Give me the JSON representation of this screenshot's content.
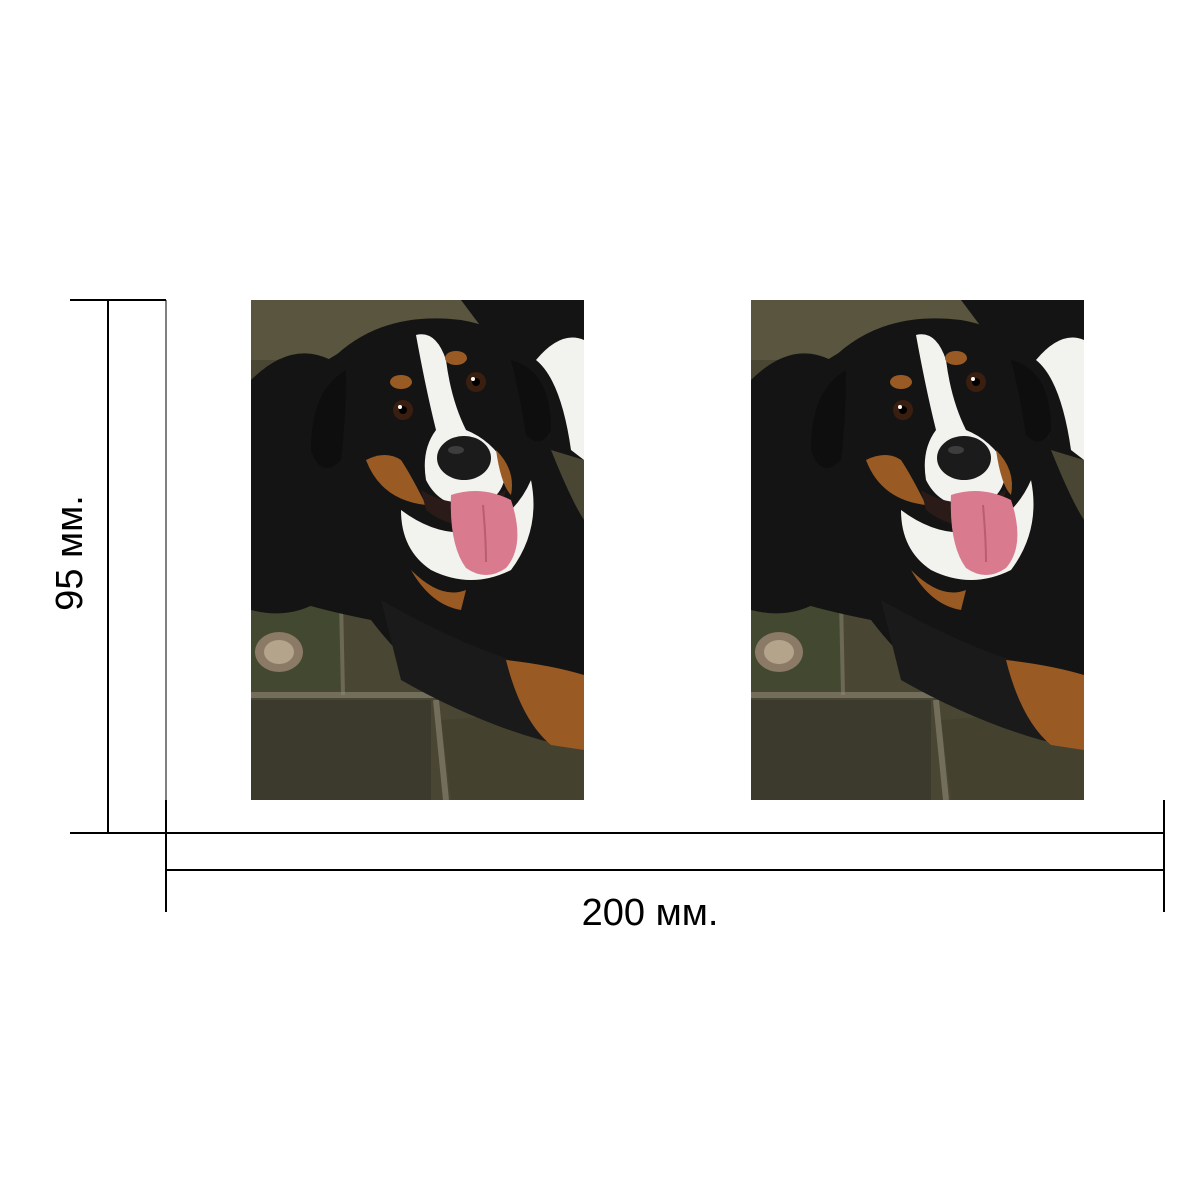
{
  "dimensions": {
    "height_label": "95 мм.",
    "width_label": "200 мм."
  },
  "photos": [
    {
      "subject": "bernese-mountain-dog-puppy"
    },
    {
      "subject": "bernese-mountain-dog-puppy"
    }
  ],
  "colors": {
    "line": "#000000",
    "background": "#ffffff",
    "ground": "#4a4634",
    "fur_black": "#141414",
    "fur_tan": "#9a5a24",
    "fur_white": "#f2f2ee",
    "tongue": "#d97a8e"
  }
}
